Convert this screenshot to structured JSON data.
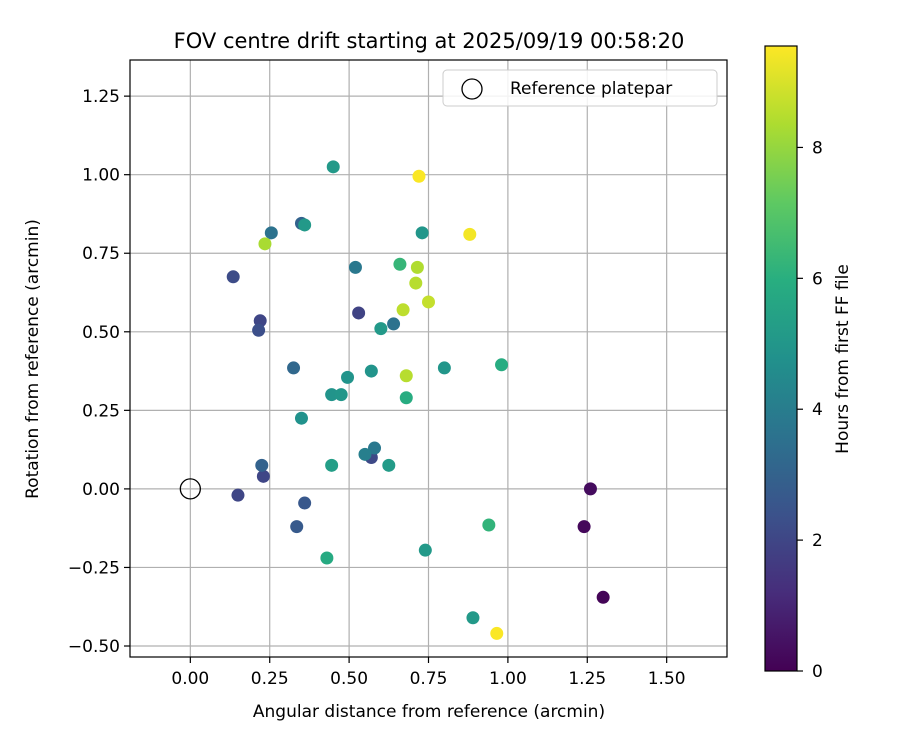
{
  "chart_data": {
    "type": "scatter",
    "title": "FOV centre drift starting at 2025/09/19 00:58:20",
    "xlabel": "Angular distance from reference (arcmin)",
    "ylabel": "Rotation from reference (arcmin)",
    "xlim": [
      -0.19,
      1.69
    ],
    "ylim": [
      -0.535,
      1.365
    ],
    "xticks": [
      0.0,
      0.25,
      0.5,
      0.75,
      1.0,
      1.25,
      1.5
    ],
    "xtick_labels": [
      "0.00",
      "0.25",
      "0.50",
      "0.75",
      "1.00",
      "1.25",
      "1.50"
    ],
    "yticks": [
      -0.5,
      -0.25,
      0.0,
      0.25,
      0.5,
      0.75,
      1.0,
      1.25
    ],
    "ytick_labels": [
      "−0.50",
      "−0.25",
      "0.00",
      "0.25",
      "0.50",
      "0.75",
      "1.00",
      "1.25"
    ],
    "grid": true,
    "legend": {
      "position": "top-right",
      "label": "Reference platepar"
    },
    "reference": {
      "x": 0.0,
      "y": 0.0
    },
    "colormap": "viridis",
    "colorbar": {
      "label": "Hours from first FF file",
      "range": [
        0,
        9.55
      ],
      "ticks": [
        0,
        2,
        4,
        6,
        8
      ],
      "tick_labels": [
        "0",
        "2",
        "4",
        "6",
        "8"
      ]
    },
    "points": [
      {
        "x": 1.3,
        "y": -0.345,
        "c": 0.1
      },
      {
        "x": 1.24,
        "y": -0.12,
        "c": 0.2
      },
      {
        "x": 1.26,
        "y": 0.0,
        "c": 0.3
      },
      {
        "x": 0.15,
        "y": -0.02,
        "c": 2.0
      },
      {
        "x": 0.23,
        "y": 0.04,
        "c": 2.0
      },
      {
        "x": 0.22,
        "y": 0.535,
        "c": 2.0
      },
      {
        "x": 0.215,
        "y": 0.505,
        "c": 2.3
      },
      {
        "x": 0.135,
        "y": 0.675,
        "c": 2.2
      },
      {
        "x": 0.53,
        "y": 0.56,
        "c": 1.9
      },
      {
        "x": 0.57,
        "y": 0.1,
        "c": 2.1
      },
      {
        "x": 0.335,
        "y": -0.12,
        "c": 2.7
      },
      {
        "x": 0.36,
        "y": -0.045,
        "c": 2.6
      },
      {
        "x": 0.225,
        "y": 0.075,
        "c": 3.0
      },
      {
        "x": 0.325,
        "y": 0.385,
        "c": 3.2
      },
      {
        "x": 0.35,
        "y": 0.845,
        "c": 3.0
      },
      {
        "x": 0.255,
        "y": 0.815,
        "c": 3.6
      },
      {
        "x": 0.52,
        "y": 0.705,
        "c": 3.8
      },
      {
        "x": 0.64,
        "y": 0.525,
        "c": 3.6
      },
      {
        "x": 0.58,
        "y": 0.13,
        "c": 3.8
      },
      {
        "x": 0.55,
        "y": 0.11,
        "c": 4.1
      },
      {
        "x": 0.45,
        "y": 1.025,
        "c": 5.1
      },
      {
        "x": 0.36,
        "y": 0.84,
        "c": 5.1
      },
      {
        "x": 0.73,
        "y": 0.815,
        "c": 5.0
      },
      {
        "x": 0.6,
        "y": 0.51,
        "c": 5.1
      },
      {
        "x": 0.57,
        "y": 0.375,
        "c": 4.9
      },
      {
        "x": 0.495,
        "y": 0.355,
        "c": 4.9
      },
      {
        "x": 0.445,
        "y": 0.3,
        "c": 4.9
      },
      {
        "x": 0.475,
        "y": 0.3,
        "c": 5.0
      },
      {
        "x": 0.35,
        "y": 0.225,
        "c": 4.8
      },
      {
        "x": 0.445,
        "y": 0.075,
        "c": 5.3
      },
      {
        "x": 0.625,
        "y": 0.075,
        "c": 5.2
      },
      {
        "x": 0.43,
        "y": -0.22,
        "c": 5.8
      },
      {
        "x": 0.74,
        "y": -0.195,
        "c": 5.1
      },
      {
        "x": 0.89,
        "y": -0.41,
        "c": 5.1
      },
      {
        "x": 0.68,
        "y": 0.29,
        "c": 5.9
      },
      {
        "x": 0.8,
        "y": 0.385,
        "c": 5.0
      },
      {
        "x": 0.98,
        "y": 0.395,
        "c": 5.9
      },
      {
        "x": 0.94,
        "y": -0.115,
        "c": 6.2
      },
      {
        "x": 0.66,
        "y": 0.715,
        "c": 6.3
      },
      {
        "x": 0.235,
        "y": 0.78,
        "c": 8.3
      },
      {
        "x": 0.715,
        "y": 0.705,
        "c": 8.4
      },
      {
        "x": 0.71,
        "y": 0.655,
        "c": 8.5
      },
      {
        "x": 0.67,
        "y": 0.57,
        "c": 8.6
      },
      {
        "x": 0.75,
        "y": 0.595,
        "c": 8.7
      },
      {
        "x": 0.68,
        "y": 0.36,
        "c": 8.5
      },
      {
        "x": 0.72,
        "y": 0.995,
        "c": 9.5
      },
      {
        "x": 0.88,
        "y": 0.81,
        "c": 9.4
      },
      {
        "x": 0.965,
        "y": -0.46,
        "c": 9.5
      }
    ]
  }
}
